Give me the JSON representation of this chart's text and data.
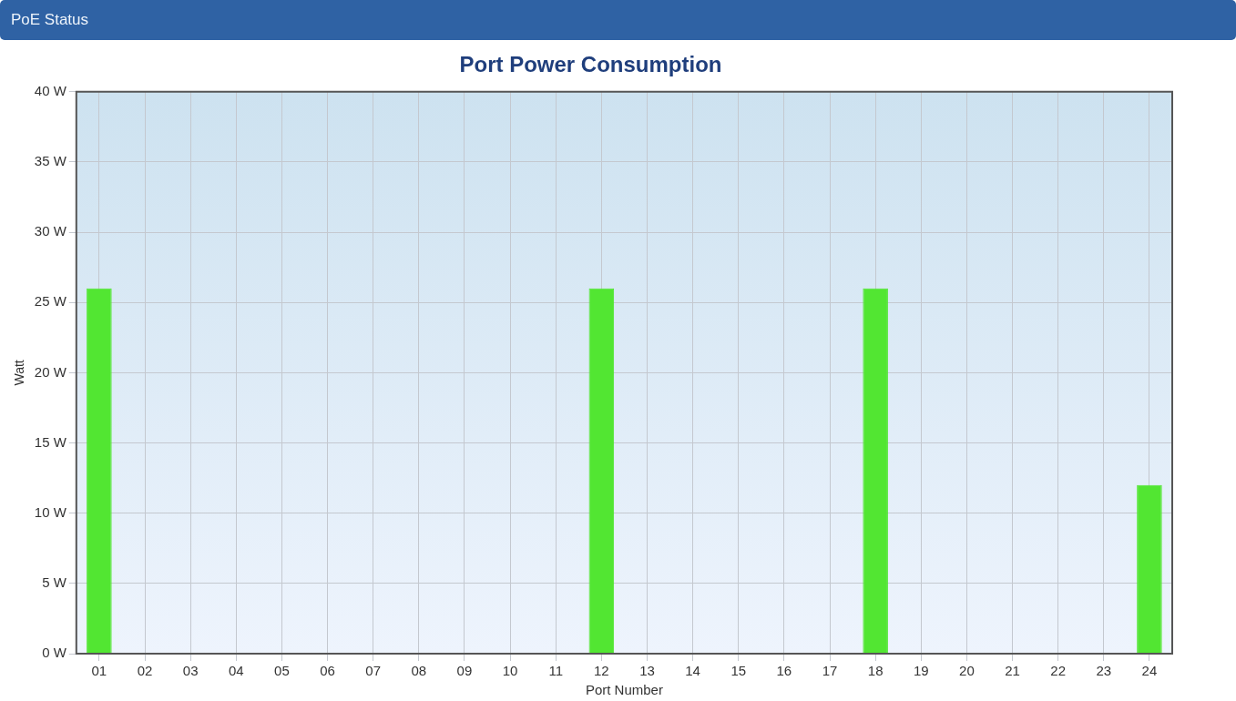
{
  "chart_data": {
    "type": "bar",
    "subtitle": "PoE Status",
    "title": "Port Power Consumption",
    "xlabel": "Port Number",
    "ylabel": "Watt",
    "categories": [
      "01",
      "02",
      "03",
      "04",
      "05",
      "06",
      "07",
      "08",
      "09",
      "10",
      "11",
      "12",
      "13",
      "14",
      "15",
      "16",
      "17",
      "18",
      "19",
      "20",
      "21",
      "22",
      "23",
      "24"
    ],
    "values": [
      26,
      0,
      0,
      0,
      0,
      0,
      0,
      0,
      0,
      0,
      0,
      26,
      0,
      0,
      0,
      0,
      0,
      26,
      0,
      0,
      0,
      0,
      0,
      12
    ],
    "color": "#52e632",
    "ylim": [
      0,
      40
    ],
    "yticks": [
      {
        "value": 0,
        "label": "0 W"
      },
      {
        "value": 5,
        "label": "5 W"
      },
      {
        "value": 10,
        "label": "10 W"
      },
      {
        "value": 15,
        "label": "15 W"
      },
      {
        "value": 20,
        "label": "20 W"
      },
      {
        "value": 25,
        "label": "25 W"
      },
      {
        "value": 30,
        "label": "30 W"
      },
      {
        "value": 35,
        "label": "35 W"
      },
      {
        "value": 40,
        "label": "40 W"
      }
    ],
    "grid": true,
    "legend": false
  }
}
